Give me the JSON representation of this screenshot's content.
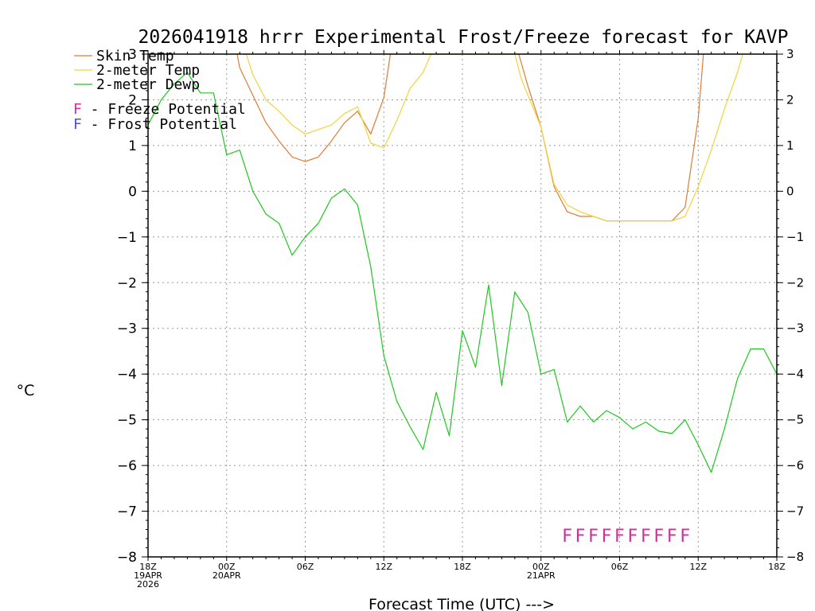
{
  "chart_data": {
    "type": "line",
    "title": "2026041918 hrrr Experimental Frost/Freeze forecast for KAVP",
    "ylabel": "°C",
    "xlabel": "Forecast Time (UTC) --->",
    "ylim": [
      -8,
      3
    ],
    "xlim": [
      0,
      48
    ],
    "yticks": [
      -8,
      -7,
      -6,
      -5,
      -4,
      -3,
      -2,
      -1,
      0,
      1,
      2,
      3
    ],
    "xticks": [
      {
        "x": 0,
        "lines": [
          "18Z",
          "19APR",
          "2026"
        ]
      },
      {
        "x": 6,
        "lines": [
          "00Z",
          "20APR"
        ]
      },
      {
        "x": 12,
        "lines": [
          "06Z"
        ]
      },
      {
        "x": 18,
        "lines": [
          "12Z"
        ]
      },
      {
        "x": 24,
        "lines": [
          "18Z"
        ]
      },
      {
        "x": 30,
        "lines": [
          "00Z",
          "21APR"
        ]
      },
      {
        "x": 36,
        "lines": [
          "06Z"
        ]
      },
      {
        "x": 42,
        "lines": [
          "12Z"
        ]
      },
      {
        "x": 48,
        "lines": [
          "18Z"
        ]
      }
    ],
    "series": [
      {
        "name": "Skin Temp",
        "color": "#e07b35",
        "points": [
          [
            6.8,
            3.0
          ],
          [
            7,
            2.7
          ],
          [
            8,
            2.1
          ],
          [
            9,
            1.5
          ],
          [
            10,
            1.1
          ],
          [
            11,
            0.75
          ],
          [
            12,
            0.65
          ],
          [
            13,
            0.75
          ],
          [
            14,
            1.1
          ],
          [
            15,
            1.5
          ],
          [
            16,
            1.75
          ],
          [
            17,
            1.25
          ],
          [
            18,
            2.05
          ],
          [
            18.5,
            3.0
          ],
          [
            28.3,
            3.0
          ],
          [
            29,
            2.3
          ],
          [
            30,
            1.4
          ],
          [
            31,
            0.1
          ],
          [
            32,
            -0.45
          ],
          [
            33,
            -0.55
          ],
          [
            34,
            -0.55
          ],
          [
            35,
            -0.65
          ],
          [
            36,
            -0.65
          ],
          [
            37,
            -0.65
          ],
          [
            38,
            -0.65
          ],
          [
            39,
            -0.65
          ],
          [
            40,
            -0.65
          ],
          [
            41,
            -0.35
          ],
          [
            42,
            1.6
          ],
          [
            42.4,
            3.0
          ]
        ]
      },
      {
        "name": "2-meter Temp",
        "color": "#f0d43c",
        "points": [
          [
            7.5,
            3.0
          ],
          [
            8,
            2.55
          ],
          [
            9,
            2.0
          ],
          [
            10,
            1.75
          ],
          [
            11,
            1.45
          ],
          [
            12,
            1.25
          ],
          [
            13,
            1.35
          ],
          [
            14,
            1.45
          ],
          [
            15,
            1.7
          ],
          [
            16,
            1.85
          ],
          [
            17,
            1.05
          ],
          [
            18,
            0.95
          ],
          [
            19,
            1.55
          ],
          [
            20,
            2.25
          ],
          [
            21,
            2.6
          ],
          [
            21.6,
            3.0
          ],
          [
            28,
            3.0
          ],
          [
            28.5,
            2.45
          ],
          [
            29,
            2.1
          ],
          [
            30,
            1.4
          ],
          [
            31,
            0.15
          ],
          [
            32,
            -0.3
          ],
          [
            33,
            -0.45
          ],
          [
            34,
            -0.55
          ],
          [
            35,
            -0.65
          ],
          [
            36,
            -0.65
          ],
          [
            37,
            -0.65
          ],
          [
            38,
            -0.65
          ],
          [
            39,
            -0.65
          ],
          [
            40,
            -0.65
          ],
          [
            41,
            -0.55
          ],
          [
            42,
            0.1
          ],
          [
            43,
            0.9
          ],
          [
            44,
            1.8
          ],
          [
            45,
            2.6
          ],
          [
            45.4,
            3.0
          ]
        ]
      },
      {
        "name": "2-meter Dewp",
        "color": "#1ec81e",
        "points": [
          [
            0,
            1.45
          ],
          [
            1,
            2.0
          ],
          [
            2,
            2.35
          ],
          [
            3,
            2.6
          ],
          [
            4,
            2.15
          ],
          [
            5,
            2.15
          ],
          [
            6,
            0.8
          ],
          [
            7,
            0.9
          ],
          [
            8,
            0.0
          ],
          [
            9,
            -0.5
          ],
          [
            10,
            -0.7
          ],
          [
            11,
            -1.4
          ],
          [
            12,
            -1.0
          ],
          [
            13,
            -0.7
          ],
          [
            14,
            -0.15
          ],
          [
            15,
            0.05
          ],
          [
            16,
            -0.3
          ],
          [
            17,
            -1.65
          ],
          [
            18,
            -3.6
          ],
          [
            19,
            -4.6
          ],
          [
            20,
            -5.15
          ],
          [
            21,
            -5.65
          ],
          [
            22,
            -4.4
          ],
          [
            23,
            -5.35
          ],
          [
            24,
            -3.05
          ],
          [
            25,
            -3.85
          ],
          [
            26,
            -2.05
          ],
          [
            27,
            -4.25
          ],
          [
            28,
            -2.2
          ],
          [
            29,
            -2.65
          ],
          [
            30,
            -4.0
          ],
          [
            31,
            -3.9
          ],
          [
            32,
            -5.05
          ],
          [
            33,
            -4.7
          ],
          [
            34,
            -5.05
          ],
          [
            35,
            -4.8
          ],
          [
            36,
            -4.95
          ],
          [
            37,
            -5.2
          ],
          [
            38,
            -5.05
          ],
          [
            39,
            -5.25
          ],
          [
            40,
            -5.3
          ],
          [
            41,
            -5.0
          ],
          [
            42,
            -5.55
          ],
          [
            43,
            -6.15
          ],
          [
            44,
            -5.2
          ],
          [
            45,
            -4.1
          ],
          [
            46,
            -3.45
          ],
          [
            47,
            -3.45
          ],
          [
            48,
            -4.0
          ]
        ]
      }
    ],
    "legend": [
      {
        "label": "Skin Temp",
        "color": "#e07b35"
      },
      {
        "label": "2-meter Temp",
        "color": "#f0d43c"
      },
      {
        "label": "2-meter Dewp",
        "color": "#1ec81e"
      }
    ],
    "potential_legend": [
      {
        "letter": "F",
        "text": " - Freeze Potential",
        "color": "#d0309a"
      },
      {
        "letter": "F",
        "text": " - Frost Potential",
        "color": "#4a4aff"
      }
    ],
    "freeze_flags": {
      "letter": "F",
      "color": "#d0309a",
      "hours": [
        32,
        33,
        34,
        35,
        36,
        37,
        38,
        39,
        40,
        41
      ]
    }
  }
}
